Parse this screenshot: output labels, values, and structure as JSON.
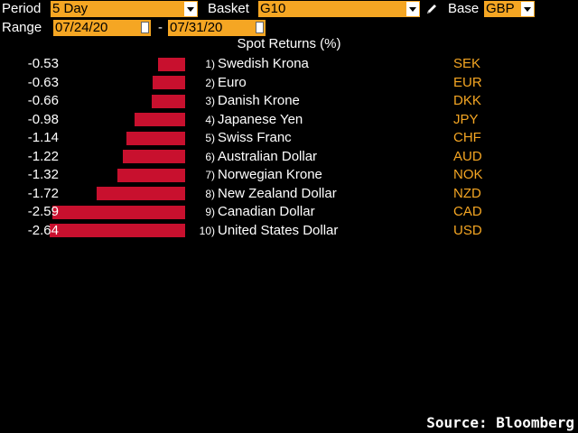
{
  "toolbar": {
    "period_label": "Period",
    "period_value": "5 Day",
    "basket_label": "Basket",
    "basket_value": "G10",
    "base_label": "Base",
    "base_value": "GBP",
    "range_label": "Range",
    "range_start": "07/24/20",
    "range_sep": "-",
    "range_end": "07/31/20"
  },
  "chart_data": {
    "type": "bar",
    "title": "Spot Returns (%)",
    "categories": [
      "Swedish Krona",
      "Euro",
      "Danish Krone",
      "Japanese Yen",
      "Swiss Franc",
      "Australian Dollar",
      "Norwegian Krone",
      "New Zealand Dollar",
      "Canadian Dollar",
      "United States Dollar"
    ],
    "ranks": [
      "1)",
      "2)",
      "3)",
      "4)",
      "5)",
      "6)",
      "7)",
      "8)",
      "9)",
      "10)"
    ],
    "codes": [
      "SEK",
      "EUR",
      "DKK",
      "JPY",
      "CHF",
      "AUD",
      "NOK",
      "NZD",
      "CAD",
      "USD"
    ],
    "values": [
      -0.53,
      -0.63,
      -0.66,
      -0.98,
      -1.14,
      -1.22,
      -1.32,
      -1.72,
      -2.59,
      -2.64
    ],
    "value_labels": [
      "-0.53",
      "-0.63",
      "-0.66",
      "-0.98",
      "-1.14",
      "-1.22",
      "-1.32",
      "-1.72",
      "-2.59",
      "-2.64"
    ],
    "bar_color": "#c8102e",
    "xlim": [
      -2.64,
      0
    ]
  },
  "footer": {
    "source": "Source: Bloomberg"
  }
}
